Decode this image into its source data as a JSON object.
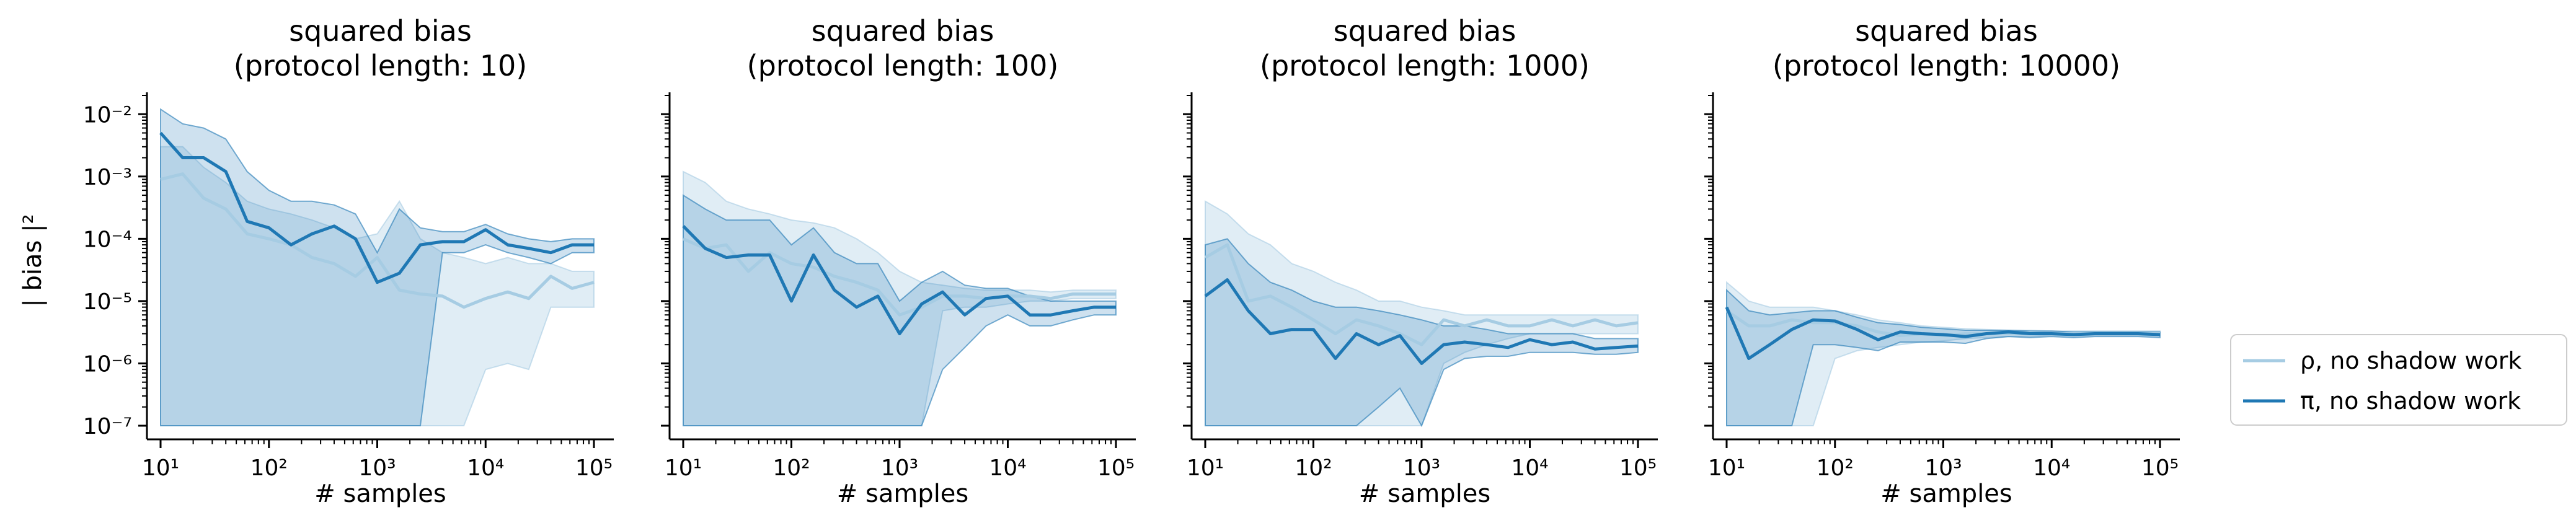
{
  "colors": {
    "rho": "#a6cce3",
    "pi": "#1f78b4",
    "rho_band": "#dbe9f1",
    "pi_band": "#c6dbea"
  },
  "legend": {
    "placement": "right-outside-bottom",
    "items": [
      {
        "series": "rho",
        "label": "ρ, no shadow work"
      },
      {
        "series": "pi",
        "label": "π, no shadow work"
      }
    ]
  },
  "chart_data": [
    {
      "type": "line",
      "title": "squared bias",
      "subtitle": "(protocol length: 10)",
      "xlabel": "# samples",
      "ylabel": "| bias |²",
      "xscale": "log",
      "yscale": "log",
      "xlim": [
        10,
        100000
      ],
      "ylim": [
        1e-07,
        0.02
      ],
      "xticks": [
        "10¹",
        "10²",
        "10³",
        "10⁴",
        "10⁵"
      ],
      "yticks": [
        "10⁻⁷",
        "10⁻⁶",
        "10⁻⁵",
        "10⁻⁴",
        "10⁻³",
        "10⁻²"
      ],
      "grid": false,
      "x": [
        10,
        16,
        25,
        40,
        63,
        100,
        160,
        250,
        400,
        630,
        1000,
        1600,
        2500,
        4000,
        6300,
        10000,
        16000,
        25000,
        40000,
        63000,
        100000
      ],
      "series": [
        {
          "name": "ρ, no shadow work",
          "key": "rho",
          "values": [
            0.0009,
            0.0011,
            0.00045,
            0.0003,
            0.00012,
            0.0001,
            8e-05,
            5e-05,
            4e-05,
            2.5e-05,
            5e-05,
            1.5e-05,
            1.3e-05,
            1.2e-05,
            8e-06,
            1.1e-05,
            1.4e-05,
            1.1e-05,
            2.5e-05,
            1.6e-05,
            2e-05
          ],
          "upper": [
            0.003,
            0.003,
            0.0014,
            0.0008,
            0.0004,
            0.0003,
            0.00025,
            0.0002,
            0.00015,
            0.0001,
            0.00012,
            0.0004,
            0.0001,
            6e-05,
            5e-05,
            4e-05,
            5e-05,
            4e-05,
            4e-05,
            3e-05,
            3e-05
          ],
          "lower": [
            1e-07,
            1e-07,
            1e-07,
            1e-07,
            1e-07,
            1e-07,
            1e-07,
            1e-07,
            1e-07,
            1e-07,
            1e-07,
            1e-07,
            1e-07,
            1e-07,
            1e-07,
            8e-07,
            1e-06,
            8e-07,
            8e-06,
            8e-06,
            8e-06
          ]
        },
        {
          "name": "π, no shadow work",
          "key": "pi",
          "values": [
            0.005,
            0.002,
            0.002,
            0.0012,
            0.00019,
            0.00015,
            8e-05,
            0.00012,
            0.00016,
            0.0001,
            2e-05,
            2.8e-05,
            8e-05,
            9e-05,
            9e-05,
            0.00014,
            8e-05,
            7e-05,
            6e-05,
            8e-05,
            8e-05
          ]
        },
        {
          "key": "pi_upper",
          "values": [
            0.012,
            0.007,
            0.006,
            0.004,
            0.0012,
            0.0006,
            0.0004,
            0.0004,
            0.00035,
            0.00025,
            6e-05,
            0.0003,
            0.00015,
            0.00013,
            0.00013,
            0.00017,
            0.00012,
            0.0001,
            9e-05,
            0.0001,
            0.0001
          ]
        },
        {
          "key": "pi_lower",
          "values": [
            1e-07,
            1e-07,
            1e-07,
            1e-07,
            1e-07,
            1e-07,
            1e-07,
            1e-07,
            1e-07,
            1e-07,
            1e-07,
            1e-07,
            1e-07,
            6e-05,
            6e-05,
            8e-05,
            6e-05,
            5e-05,
            4e-05,
            6e-05,
            6e-05
          ]
        }
      ]
    },
    {
      "type": "line",
      "title": "squared bias",
      "subtitle": "(protocol length: 100)",
      "xlabel": "# samples",
      "xscale": "log",
      "yscale": "log",
      "xlim": [
        10,
        100000
      ],
      "ylim": [
        1e-07,
        0.02
      ],
      "xticks": [
        "10¹",
        "10²",
        "10³",
        "10⁴",
        "10⁵"
      ],
      "grid": false,
      "x": [
        10,
        16,
        25,
        40,
        63,
        100,
        160,
        250,
        400,
        630,
        1000,
        1600,
        2500,
        4000,
        6300,
        10000,
        16000,
        25000,
        40000,
        63000,
        100000
      ],
      "series": [
        {
          "name": "ρ, no shadow work",
          "key": "rho",
          "values": [
            0.0001,
            7e-05,
            8e-05,
            3e-05,
            6e-05,
            4e-05,
            3.5e-05,
            2.5e-05,
            2e-05,
            1.5e-05,
            6e-06,
            8e-06,
            1.2e-05,
            1.2e-05,
            1.1e-05,
            1.2e-05,
            1.2e-05,
            1.1e-05,
            1.3e-05,
            1.3e-05,
            1.3e-05
          ],
          "upper": [
            0.0012,
            0.0008,
            0.0004,
            0.0003,
            0.00025,
            0.0002,
            0.00018,
            0.00015,
            0.0001,
            6e-05,
            3e-05,
            2e-05,
            1.8e-05,
            1.6e-05,
            1.5e-05,
            1.5e-05,
            1.5e-05,
            1.4e-05,
            1.5e-05,
            1.5e-05,
            1.5e-05
          ],
          "lower": [
            1e-07,
            1e-07,
            1e-07,
            1e-07,
            1e-07,
            1e-07,
            1e-07,
            1e-07,
            1e-07,
            1e-07,
            1e-07,
            1e-07,
            7e-06,
            8e-06,
            8e-06,
            9e-06,
            1e-05,
            1e-05,
            1.1e-05,
            1.1e-05,
            1.1e-05
          ]
        },
        {
          "name": "π, no shadow work",
          "key": "pi",
          "values": [
            0.00016,
            7e-05,
            5e-05,
            5.5e-05,
            5.5e-05,
            1e-05,
            5.5e-05,
            1.5e-05,
            8e-06,
            1.2e-05,
            3e-06,
            9e-06,
            1.4e-05,
            6e-06,
            1.1e-05,
            1.2e-05,
            6e-06,
            6e-06,
            7e-06,
            8e-06,
            8e-06
          ]
        },
        {
          "key": "pi_upper",
          "values": [
            0.0005,
            0.0003,
            0.0002,
            0.0002,
            0.0002,
            8e-05,
            0.00015,
            6e-05,
            4e-05,
            4e-05,
            1e-05,
            2e-05,
            3e-05,
            1.8e-05,
            1.6e-05,
            1.6e-05,
            1.2e-05,
            1e-05,
            1e-05,
            1e-05,
            1e-05
          ]
        },
        {
          "key": "pi_lower",
          "values": [
            1e-07,
            1e-07,
            1e-07,
            1e-07,
            1e-07,
            1e-07,
            1e-07,
            1e-07,
            1e-07,
            1e-07,
            1e-07,
            1e-07,
            8e-07,
            1.8e-06,
            4e-06,
            6e-06,
            4e-06,
            4e-06,
            5e-06,
            6e-06,
            6e-06
          ]
        }
      ]
    },
    {
      "type": "line",
      "title": "squared bias",
      "subtitle": "(protocol length: 1000)",
      "xlabel": "# samples",
      "xscale": "log",
      "yscale": "log",
      "xlim": [
        10,
        100000
      ],
      "ylim": [
        1e-07,
        0.02
      ],
      "xticks": [
        "10¹",
        "10²",
        "10³",
        "10⁴",
        "10⁵"
      ],
      "grid": false,
      "x": [
        10,
        16,
        25,
        40,
        63,
        100,
        160,
        250,
        400,
        630,
        1000,
        1600,
        2500,
        4000,
        6300,
        10000,
        16000,
        25000,
        40000,
        63000,
        100000
      ],
      "series": [
        {
          "name": "ρ, no shadow work",
          "key": "rho",
          "values": [
            5e-05,
            8e-05,
            1e-05,
            1.2e-05,
            8e-06,
            5e-06,
            3e-06,
            5e-06,
            4e-06,
            3e-06,
            2e-06,
            5e-06,
            4e-06,
            5e-06,
            4e-06,
            4e-06,
            5e-06,
            4e-06,
            5e-06,
            4e-06,
            4.5e-06
          ],
          "upper": [
            0.0004,
            0.00025,
            0.00012,
            8e-05,
            4e-05,
            3e-05,
            2e-05,
            1.5e-05,
            1e-05,
            1e-05,
            8e-06,
            7e-06,
            6e-06,
            6e-06,
            6e-06,
            6e-06,
            6e-06,
            6e-06,
            6e-06,
            6e-06,
            6e-06
          ],
          "lower": [
            1e-07,
            1e-07,
            1e-07,
            1e-07,
            1e-07,
            1e-07,
            1e-07,
            1e-07,
            1e-07,
            1e-07,
            1e-07,
            1e-06,
            1.5e-06,
            2e-06,
            2.5e-06,
            3e-06,
            3e-06,
            3e-06,
            3e-06,
            3e-06,
            3e-06
          ]
        },
        {
          "name": "π, no shadow work",
          "key": "pi",
          "values": [
            1.2e-05,
            2.2e-05,
            7e-06,
            3e-06,
            3.5e-06,
            3.5e-06,
            1.2e-06,
            3e-06,
            2e-06,
            2.8e-06,
            1e-06,
            2e-06,
            2.2e-06,
            2e-06,
            1.8e-06,
            2.4e-06,
            2e-06,
            2.2e-06,
            1.7e-06,
            1.8e-06,
            1.9e-06
          ]
        },
        {
          "key": "pi_upper",
          "values": [
            8e-05,
            0.0001,
            4e-05,
            2e-05,
            1.5e-05,
            1e-05,
            8e-06,
            8e-06,
            7e-06,
            6e-06,
            5e-06,
            4e-06,
            4e-06,
            3.5e-06,
            3e-06,
            3e-06,
            3e-06,
            3e-06,
            2.5e-06,
            2.5e-06,
            2.5e-06
          ]
        },
        {
          "key": "pi_lower",
          "values": [
            1e-07,
            1e-07,
            1e-07,
            1e-07,
            1e-07,
            1e-07,
            1e-07,
            1e-07,
            2e-07,
            4e-07,
            1e-07,
            8e-07,
            1.2e-06,
            1.3e-06,
            1.3e-06,
            1.5e-06,
            1.5e-06,
            1.5e-06,
            1.4e-06,
            1.4e-06,
            1.5e-06
          ]
        }
      ]
    },
    {
      "type": "line",
      "title": "squared bias",
      "subtitle": "(protocol length: 10000)",
      "xlabel": "# samples",
      "xscale": "log",
      "yscale": "log",
      "xlim": [
        10,
        100000
      ],
      "ylim": [
        1e-07,
        0.02
      ],
      "xticks": [
        "10¹",
        "10²",
        "10³",
        "10⁴",
        "10⁵"
      ],
      "grid": false,
      "x": [
        10,
        16,
        25,
        40,
        63,
        100,
        160,
        250,
        400,
        630,
        1000,
        1600,
        2500,
        4000,
        6300,
        10000,
        16000,
        25000,
        40000,
        63000,
        100000
      ],
      "series": [
        {
          "name": "ρ, no shadow work",
          "key": "rho",
          "values": [
            7e-06,
            4e-06,
            4e-06,
            5e-06,
            4.5e-06,
            4.5e-06,
            4e-06,
            3.2e-06,
            2.8e-06,
            3e-06,
            2.8e-06,
            3e-06,
            3e-06,
            3e-06,
            3.1e-06,
            3e-06,
            3e-06,
            3e-06,
            3e-06,
            3e-06,
            3e-06
          ],
          "upper": [
            2e-05,
            1e-05,
            8e-06,
            8e-06,
            8e-06,
            7e-06,
            6e-06,
            5e-06,
            4.5e-06,
            4e-06,
            3.8e-06,
            3.6e-06,
            3.5e-06,
            3.4e-06,
            3.4e-06,
            3.3e-06,
            3.3e-06,
            3.3e-06,
            3.3e-06,
            3.3e-06,
            3.3e-06
          ],
          "lower": [
            1e-07,
            1e-07,
            1e-07,
            1e-07,
            1e-07,
            1.2e-06,
            1.6e-06,
            1.8e-06,
            2e-06,
            2.2e-06,
            2.3e-06,
            2.5e-06,
            2.6e-06,
            2.7e-06,
            2.7e-06,
            2.8e-06,
            2.8e-06,
            2.8e-06,
            2.8e-06,
            2.8e-06,
            2.8e-06
          ]
        },
        {
          "name": "π, no shadow work",
          "key": "pi",
          "values": [
            8e-06,
            1.2e-06,
            2e-06,
            3.5e-06,
            5e-06,
            4.8e-06,
            3.5e-06,
            2.4e-06,
            3.2e-06,
            3e-06,
            2.9e-06,
            2.7e-06,
            3e-06,
            3.2e-06,
            3e-06,
            3e-06,
            2.9e-06,
            3e-06,
            3e-06,
            3e-06,
            2.9e-06
          ]
        },
        {
          "key": "pi_upper",
          "values": [
            1.5e-05,
            7e-06,
            6e-06,
            6.5e-06,
            7e-06,
            7e-06,
            5.5e-06,
            4.5e-06,
            4.2e-06,
            3.8e-06,
            3.6e-06,
            3.4e-06,
            3.4e-06,
            3.4e-06,
            3.3e-06,
            3.3e-06,
            3.2e-06,
            3.2e-06,
            3.2e-06,
            3.2e-06,
            3.2e-06
          ]
        },
        {
          "key": "pi_lower",
          "values": [
            1e-07,
            1e-07,
            1e-07,
            1e-07,
            2e-06,
            2e-06,
            1.8e-06,
            1.6e-06,
            2.2e-06,
            2.2e-06,
            2.2e-06,
            2.1e-06,
            2.5e-06,
            2.7e-06,
            2.6e-06,
            2.7e-06,
            2.6e-06,
            2.7e-06,
            2.7e-06,
            2.7e-06,
            2.6e-06
          ]
        }
      ]
    }
  ]
}
